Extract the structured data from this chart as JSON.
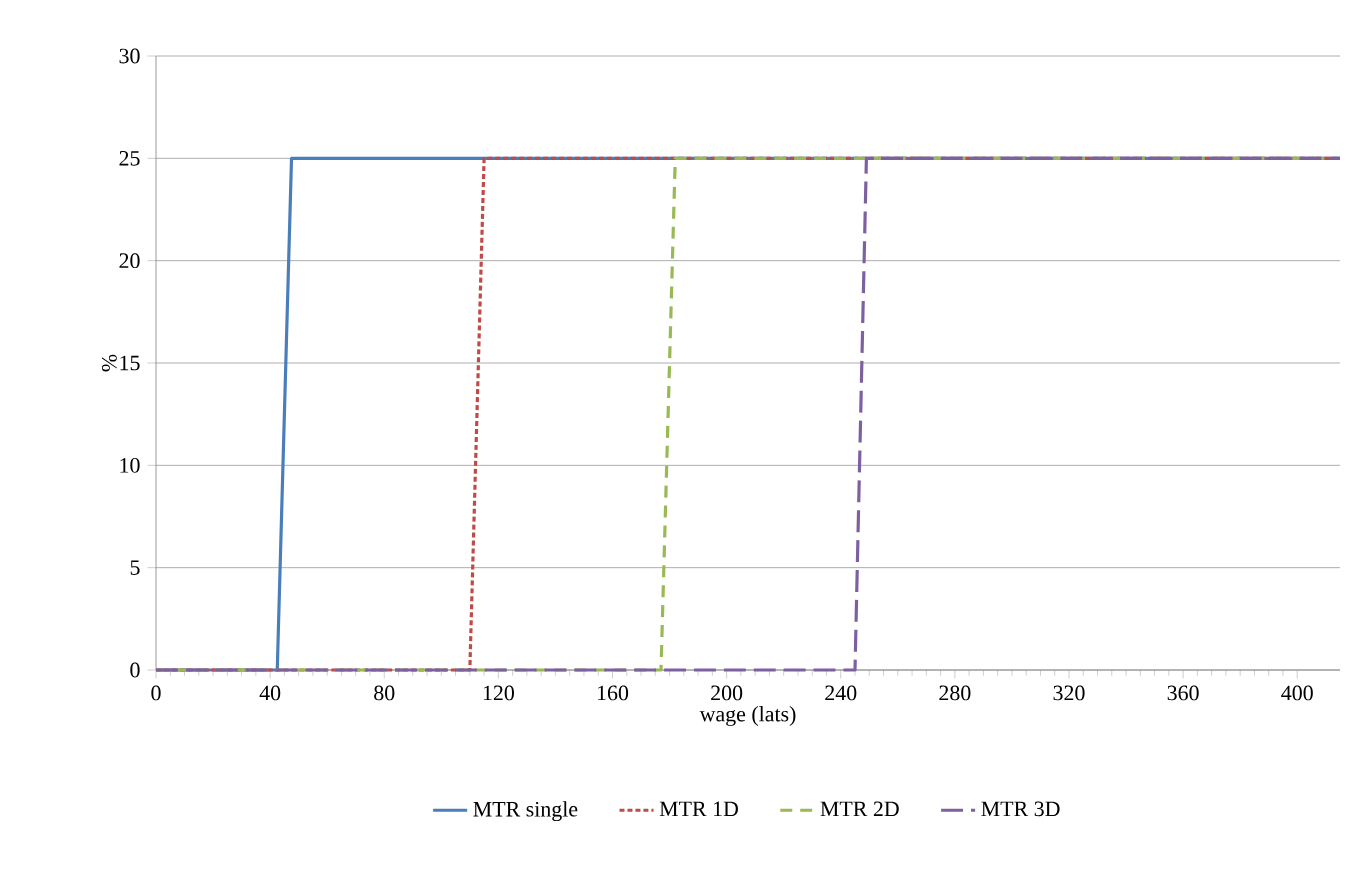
{
  "chart_data": {
    "type": "line",
    "xlabel": "wage (lats)",
    "ylabel": "%",
    "xlim": [
      0,
      415
    ],
    "xticks": [
      0,
      40,
      80,
      120,
      160,
      200,
      240,
      280,
      320,
      360,
      400
    ],
    "ylim": [
      0,
      30
    ],
    "yticks": [
      0,
      5,
      10,
      15,
      20,
      25,
      30
    ],
    "grid": "y",
    "legend": "bottom",
    "marker": "none",
    "series": [
      {
        "name": "MTR single",
        "color": "#4a7ebb",
        "line_style": "solid",
        "x": [
          0,
          42.5,
          47.5,
          415
        ],
        "values": [
          0,
          0,
          25,
          25
        ]
      },
      {
        "name": "MTR 1D",
        "color": "#be4b48",
        "line_style": "dotted",
        "x": [
          0,
          110,
          115,
          415
        ],
        "values": [
          0,
          0,
          25,
          25
        ]
      },
      {
        "name": "MTR 2D",
        "color": "#98b954",
        "line_style": "dashed",
        "x": [
          0,
          177,
          182,
          415
        ],
        "values": [
          0,
          0,
          25,
          25
        ]
      },
      {
        "name": "MTR 3D",
        "color": "#7d60a0",
        "line_style": "long dashed",
        "x": [
          0,
          245,
          249,
          415
        ],
        "values": [
          0,
          0,
          25,
          25
        ]
      }
    ]
  }
}
